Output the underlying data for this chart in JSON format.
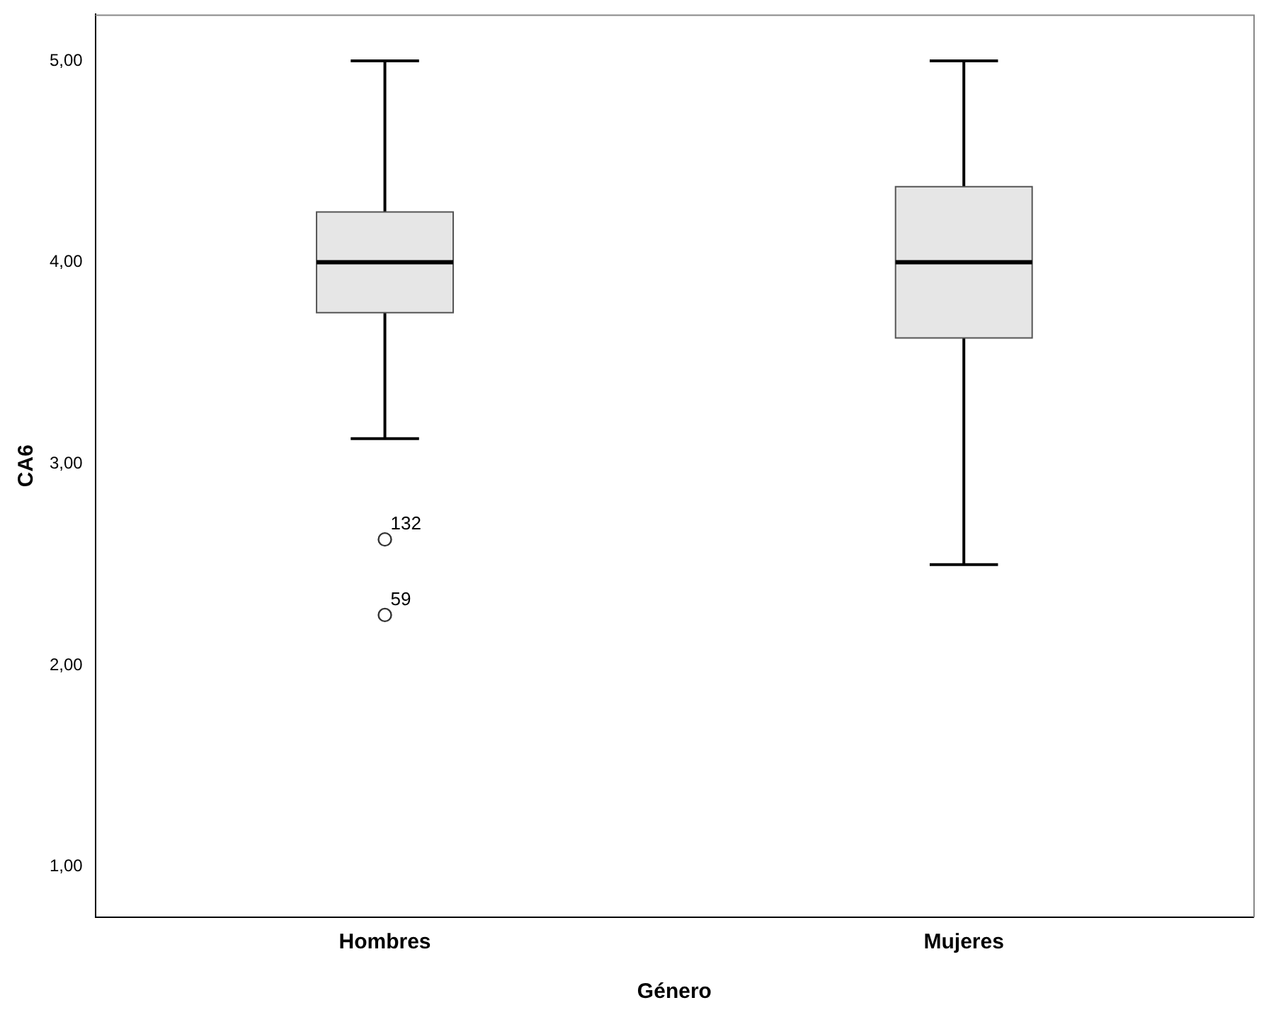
{
  "chart_data": {
    "type": "box",
    "xlabel": "Género",
    "ylabel": "CA6",
    "categories": [
      "Hombres",
      "Mujeres"
    ],
    "color": "#e6e6e6",
    "boxes": [
      {
        "low": 3.125,
        "q1": 3.75,
        "median": 4.0,
        "q3": 4.25,
        "high": 5.0,
        "outliers": [
          2.625,
          2.25
        ]
      },
      {
        "low": 2.5,
        "q1": 3.625,
        "median": 4.0,
        "q3": 4.375,
        "high": 5.0
      }
    ],
    "ylim": [
      0.75,
      5.23
    ],
    "yticks": [
      {
        "value": 1,
        "label": "1,00"
      },
      {
        "value": 2,
        "label": "2,00"
      },
      {
        "value": 3,
        "label": "3,00"
      },
      {
        "value": 4,
        "label": "4,00"
      },
      {
        "value": 5,
        "label": "5,00"
      }
    ],
    "annotations": [
      "132",
      "59"
    ],
    "grid": false,
    "legend": false
  }
}
